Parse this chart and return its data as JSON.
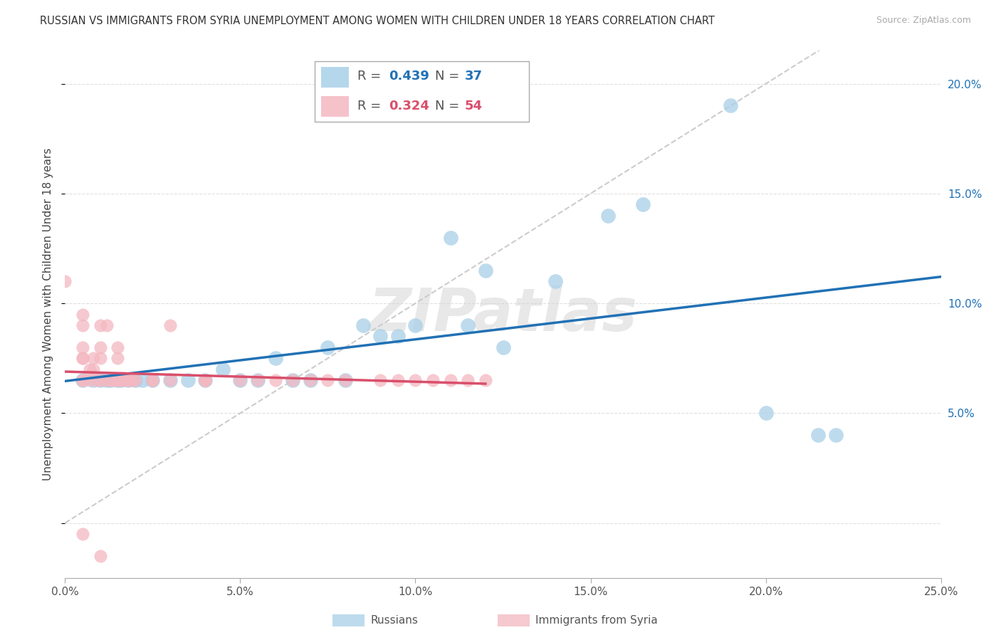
{
  "title": "RUSSIAN VS IMMIGRANTS FROM SYRIA UNEMPLOYMENT AMONG WOMEN WITH CHILDREN UNDER 18 YEARS CORRELATION CHART",
  "source": "Source: ZipAtlas.com",
  "ylabel": "Unemployment Among Women with Children Under 18 years",
  "russians_R": 0.439,
  "russians_N": 37,
  "syria_R": 0.324,
  "syria_N": 54,
  "russians_color": "#a8d0e8",
  "syria_color": "#f4b8c1",
  "russians_line_color": "#2171b5",
  "syria_line_color": "#d94f6b",
  "dashed_line_color": "#cccccc",
  "watermark": "ZIPatlas",
  "xlim": [
    0.0,
    0.25
  ],
  "ylim": [
    -0.025,
    0.215
  ],
  "x_ticks": [
    0.0,
    0.05,
    0.1,
    0.15,
    0.2,
    0.25
  ],
  "x_tick_labels": [
    "0.0%",
    "5.0%",
    "10.0%",
    "15.0%",
    "20.0%",
    "25.0%"
  ],
  "y_ticks": [
    0.05,
    0.1,
    0.15,
    0.2
  ],
  "y_tick_labels": [
    "5.0%",
    "10.0%",
    "15.0%",
    "20.0%"
  ],
  "russians_x": [
    0.005,
    0.008,
    0.01,
    0.012,
    0.013,
    0.015,
    0.016,
    0.018,
    0.02,
    0.022,
    0.025,
    0.03,
    0.035,
    0.04,
    0.045,
    0.05,
    0.055,
    0.06,
    0.065,
    0.07,
    0.075,
    0.08,
    0.085,
    0.09,
    0.095,
    0.1,
    0.11,
    0.115,
    0.12,
    0.125,
    0.14,
    0.155,
    0.165,
    0.19,
    0.2,
    0.215,
    0.22
  ],
  "russians_y": [
    0.065,
    0.065,
    0.065,
    0.065,
    0.065,
    0.065,
    0.065,
    0.065,
    0.065,
    0.065,
    0.065,
    0.065,
    0.065,
    0.065,
    0.07,
    0.065,
    0.065,
    0.075,
    0.065,
    0.065,
    0.08,
    0.065,
    0.09,
    0.085,
    0.085,
    0.09,
    0.13,
    0.09,
    0.115,
    0.08,
    0.11,
    0.14,
    0.145,
    0.19,
    0.05,
    0.04,
    0.04
  ],
  "syria_x": [
    0.005,
    0.005,
    0.005,
    0.005,
    0.005,
    0.005,
    0.005,
    0.007,
    0.007,
    0.008,
    0.008,
    0.009,
    0.01,
    0.01,
    0.01,
    0.01,
    0.012,
    0.012,
    0.013,
    0.014,
    0.015,
    0.015,
    0.015,
    0.015,
    0.016,
    0.017,
    0.018,
    0.018,
    0.019,
    0.02,
    0.025,
    0.025,
    0.03,
    0.03,
    0.04,
    0.04,
    0.04,
    0.05,
    0.055,
    0.06,
    0.065,
    0.07,
    0.075,
    0.08,
    0.09,
    0.095,
    0.1,
    0.105,
    0.11,
    0.115,
    0.12,
    0.0,
    0.005,
    0.01
  ],
  "syria_y": [
    0.075,
    0.08,
    0.09,
    0.095,
    0.075,
    0.065,
    0.065,
    0.07,
    0.065,
    0.075,
    0.07,
    0.065,
    0.075,
    0.08,
    0.09,
    0.065,
    0.09,
    0.065,
    0.065,
    0.065,
    0.075,
    0.08,
    0.065,
    0.065,
    0.065,
    0.065,
    0.065,
    0.065,
    0.065,
    0.065,
    0.065,
    0.065,
    0.065,
    0.09,
    0.065,
    0.065,
    0.065,
    0.065,
    0.065,
    0.065,
    0.065,
    0.065,
    0.065,
    0.065,
    0.065,
    0.065,
    0.065,
    0.065,
    0.065,
    0.065,
    0.065,
    0.11,
    -0.005,
    -0.015
  ]
}
